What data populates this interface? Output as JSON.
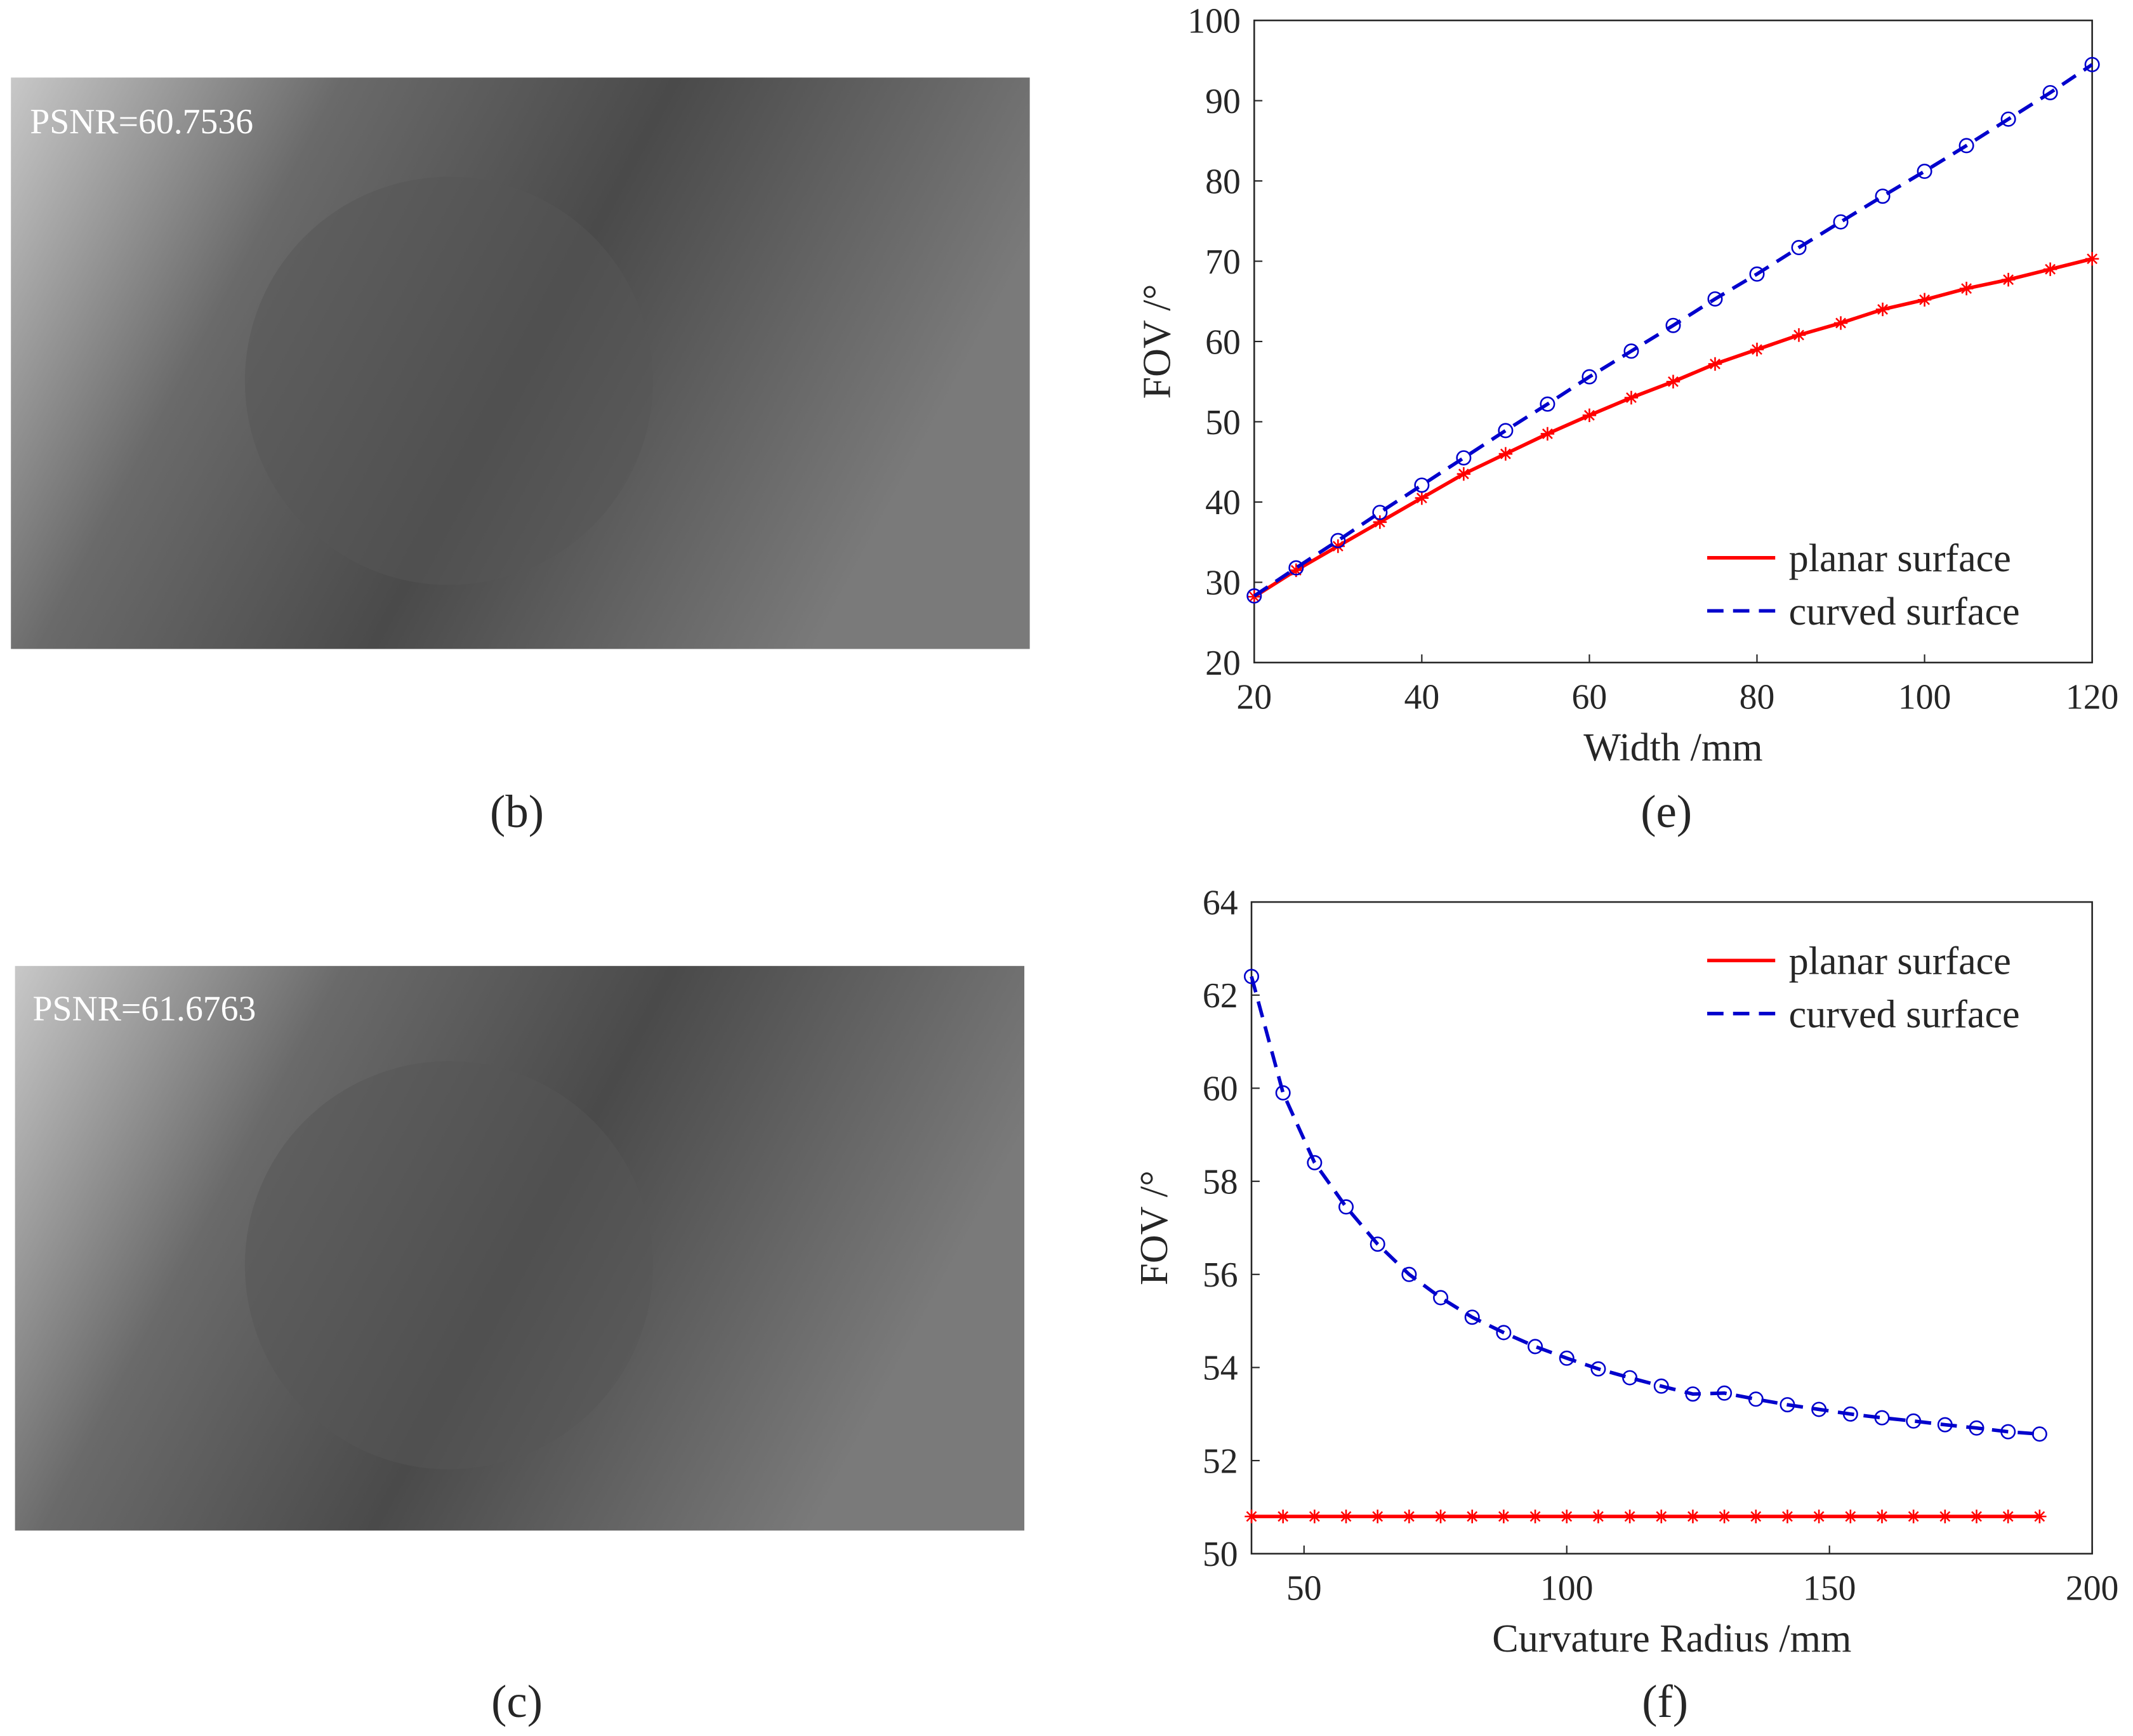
{
  "images": [
    {
      "label": "PSNR=60.7536",
      "caption": "(b)"
    },
    {
      "label": "PSNR=61.6763",
      "caption": "(c)"
    }
  ],
  "chart_data": [
    {
      "type": "line",
      "caption": "(e)",
      "xlabel": "Width /mm",
      "ylabel": "FOV /°",
      "x": [
        20,
        25,
        30,
        35,
        40,
        45,
        50,
        55,
        60,
        65,
        70,
        75,
        80,
        85,
        90,
        95,
        100,
        105,
        110,
        115,
        120
      ],
      "series": [
        {
          "name": "planar surface",
          "color": "#ff0000",
          "line_style": "solid",
          "marker": "*",
          "values": [
            28.2,
            31.5,
            34.5,
            37.5,
            40.5,
            43.5,
            46,
            48.5,
            50.8,
            53,
            55,
            57.2,
            59,
            60.8,
            62.3,
            64,
            65.2,
            66.6,
            67.7,
            69,
            70.3
          ]
        },
        {
          "name": "curved surface",
          "color": "#0000cc",
          "line_style": "dashed",
          "marker": "o",
          "values": [
            28.3,
            31.8,
            35.2,
            38.7,
            42.1,
            45.5,
            48.9,
            52.2,
            55.6,
            58.8,
            62,
            65.3,
            68.4,
            71.7,
            74.9,
            78.1,
            81.2,
            84.4,
            87.7,
            91,
            94.5
          ]
        }
      ],
      "xlim": [
        20,
        120
      ],
      "xticks": [
        20,
        40,
        60,
        80,
        100,
        120
      ],
      "ylim": [
        20,
        100
      ],
      "yticks": [
        20,
        30,
        40,
        50,
        60,
        70,
        80,
        90,
        100
      ],
      "legend": "lower right"
    },
    {
      "type": "line",
      "caption": "(f)",
      "xlabel": "Curvature Radius /mm",
      "ylabel": "FOV /°",
      "x": [
        40,
        46,
        52,
        58,
        64,
        70,
        76,
        82,
        88,
        94,
        100,
        106,
        112,
        118,
        124,
        130,
        136,
        142,
        148,
        154,
        160,
        166,
        172,
        178,
        184,
        190
      ],
      "series": [
        {
          "name": "planar surface",
          "color": "#ff0000",
          "line_style": "solid",
          "marker": "*",
          "values": [
            50.8,
            50.8,
            50.8,
            50.8,
            50.8,
            50.8,
            50.8,
            50.8,
            50.8,
            50.8,
            50.8,
            50.8,
            50.8,
            50.8,
            50.8,
            50.8,
            50.8,
            50.8,
            50.8,
            50.8,
            50.8,
            50.8,
            50.8,
            50.8,
            50.8,
            50.8
          ]
        },
        {
          "name": "curved surface",
          "color": "#0000cc",
          "line_style": "dashed",
          "marker": "o",
          "values": [
            62.4,
            59.9,
            58.4,
            57.45,
            56.65,
            56.0,
            55.5,
            55.08,
            54.75,
            54.45,
            54.2,
            53.97,
            53.78,
            53.6,
            53.43,
            53.45,
            53.32,
            53.2,
            53.1,
            53.0,
            52.92,
            52.85,
            52.77,
            52.7,
            52.62,
            52.57
          ]
        }
      ],
      "xlim": [
        40,
        200
      ],
      "xticks": [
        50,
        100,
        150,
        200
      ],
      "ylim": [
        50,
        64
      ],
      "yticks": [
        50,
        52,
        54,
        56,
        58,
        60,
        62,
        64
      ],
      "legend": "upper right"
    }
  ]
}
